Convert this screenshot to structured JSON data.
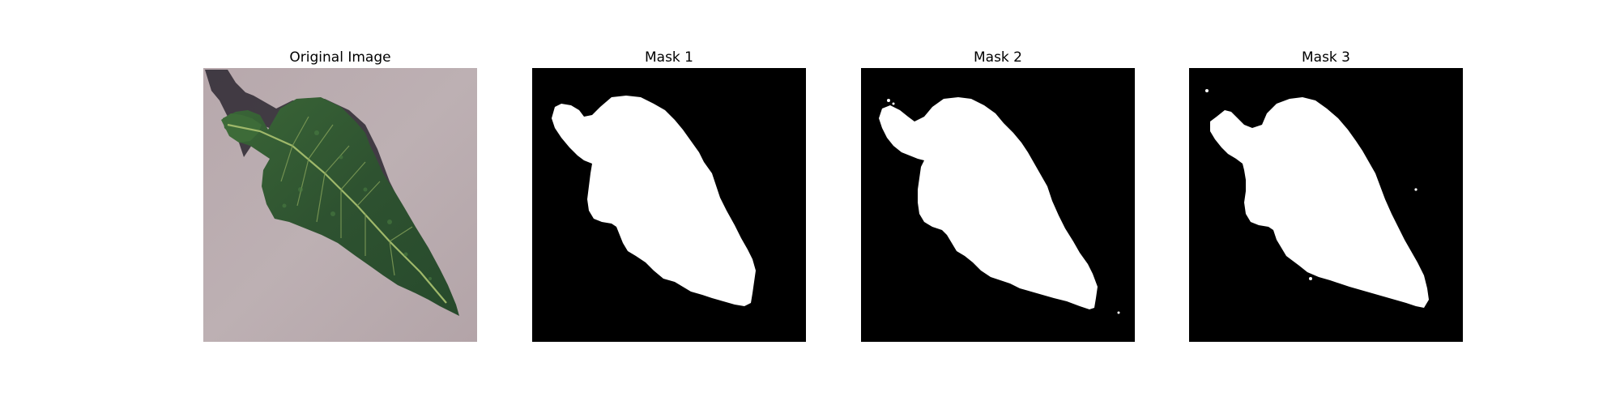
{
  "figure": {
    "panels": [
      {
        "title": "Original Image",
        "kind": "photo"
      },
      {
        "title": "Mask 1",
        "kind": "mask"
      },
      {
        "title": "Mask 2",
        "kind": "mask"
      },
      {
        "title": "Mask 3",
        "kind": "mask"
      }
    ],
    "colors": {
      "background": "#ffffff",
      "mask_background": "#000000",
      "mask_foreground": "#ffffff",
      "photo_background": "#b8a9ad",
      "leaf_dark": "#2f5430",
      "leaf_mid": "#3f6b3a",
      "leaf_vein": "#9fb86a",
      "shadow": "#2b2730"
    }
  }
}
